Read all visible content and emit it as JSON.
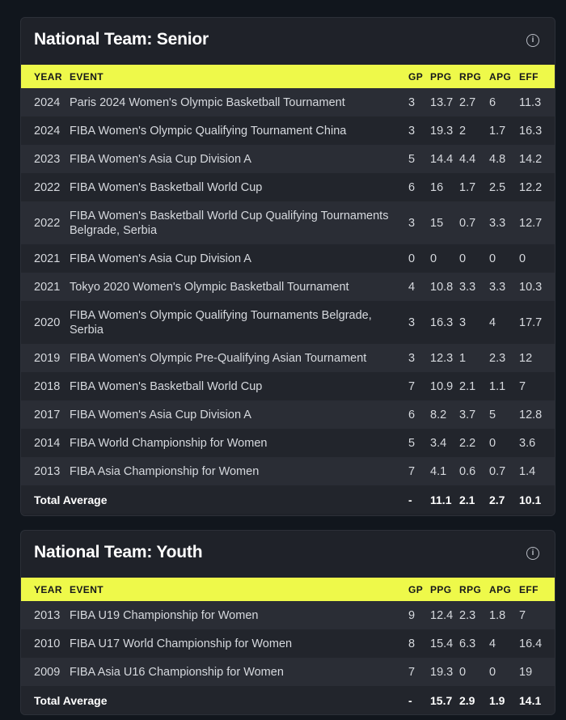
{
  "colors": {
    "background": "#11161d",
    "card": "#1f2229",
    "header_accent": "#eef94a"
  },
  "columns": {
    "year": "YEAR",
    "event": "EVENT",
    "gp": "GP",
    "ppg": "PPG",
    "rpg": "RPG",
    "apg": "APG",
    "eff": "EFF"
  },
  "senior": {
    "title": "National Team: Senior",
    "info_icon": "info-circle-icon",
    "rows": [
      {
        "year": "2024",
        "event": "Paris 2024 Women's Olympic Basketball Tournament",
        "gp": "3",
        "ppg": "13.7",
        "rpg": "2.7",
        "apg": "6",
        "eff": "11.3"
      },
      {
        "year": "2024",
        "event": "FIBA Women's Olympic Qualifying Tournament China",
        "gp": "3",
        "ppg": "19.3",
        "rpg": "2",
        "apg": "1.7",
        "eff": "16.3"
      },
      {
        "year": "2023",
        "event": "FIBA Women's Asia Cup Division A",
        "gp": "5",
        "ppg": "14.4",
        "rpg": "4.4",
        "apg": "4.8",
        "eff": "14.2"
      },
      {
        "year": "2022",
        "event": "FIBA Women's Basketball World Cup",
        "gp": "6",
        "ppg": "16",
        "rpg": "1.7",
        "apg": "2.5",
        "eff": "12.2"
      },
      {
        "year": "2022",
        "event": "FIBA Women's Basketball World Cup Qualifying Tournaments Belgrade, Serbia",
        "gp": "3",
        "ppg": "15",
        "rpg": "0.7",
        "apg": "3.3",
        "eff": "12.7"
      },
      {
        "year": "2021",
        "event": "FIBA Women's Asia Cup Division A",
        "gp": "0",
        "ppg": "0",
        "rpg": "0",
        "apg": "0",
        "eff": "0"
      },
      {
        "year": "2021",
        "event": "Tokyo 2020 Women's Olympic Basketball Tournament",
        "gp": "4",
        "ppg": "10.8",
        "rpg": "3.3",
        "apg": "3.3",
        "eff": "10.3"
      },
      {
        "year": "2020",
        "event": "FIBA Women's Olympic Qualifying Tournaments Belgrade, Serbia",
        "gp": "3",
        "ppg": "16.3",
        "rpg": "3",
        "apg": "4",
        "eff": "17.7"
      },
      {
        "year": "2019",
        "event": "FIBA Women's Olympic Pre-Qualifying Asian Tournament",
        "gp": "3",
        "ppg": "12.3",
        "rpg": "1",
        "apg": "2.3",
        "eff": "12"
      },
      {
        "year": "2018",
        "event": "FIBA Women's Basketball World Cup",
        "gp": "7",
        "ppg": "10.9",
        "rpg": "2.1",
        "apg": "1.1",
        "eff": "7"
      },
      {
        "year": "2017",
        "event": "FIBA Women's Asia Cup Division A",
        "gp": "6",
        "ppg": "8.2",
        "rpg": "3.7",
        "apg": "5",
        "eff": "12.8"
      },
      {
        "year": "2014",
        "event": "FIBA World Championship for Women",
        "gp": "5",
        "ppg": "3.4",
        "rpg": "2.2",
        "apg": "0",
        "eff": "3.6"
      },
      {
        "year": "2013",
        "event": "FIBA Asia Championship for Women",
        "gp": "7",
        "ppg": "4.1",
        "rpg": "0.6",
        "apg": "0.7",
        "eff": "1.4"
      }
    ],
    "total": {
      "label": "Total Average",
      "gp": "-",
      "ppg": "11.1",
      "rpg": "2.1",
      "apg": "2.7",
      "eff": "10.1"
    }
  },
  "youth": {
    "title": "National Team: Youth",
    "info_icon": "info-circle-icon",
    "rows": [
      {
        "year": "2013",
        "event": "FIBA U19 Championship for Women",
        "gp": "9",
        "ppg": "12.4",
        "rpg": "2.3",
        "apg": "1.8",
        "eff": "7"
      },
      {
        "year": "2010",
        "event": "FIBA U17 World Championship for Women",
        "gp": "8",
        "ppg": "15.4",
        "rpg": "6.3",
        "apg": "4",
        "eff": "16.4"
      },
      {
        "year": "2009",
        "event": "FIBA Asia U16 Championship for Women",
        "gp": "7",
        "ppg": "19.3",
        "rpg": "0",
        "apg": "0",
        "eff": "19"
      }
    ],
    "total": {
      "label": "Total Average",
      "gp": "-",
      "ppg": "15.7",
      "rpg": "2.9",
      "apg": "1.9",
      "eff": "14.1"
    }
  }
}
